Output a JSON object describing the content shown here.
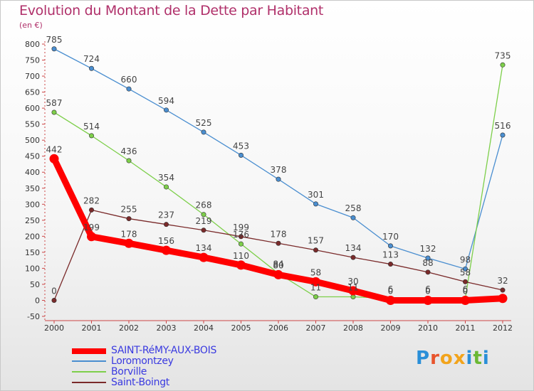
{
  "header": {
    "title": "Evolution du Montant de la Dette par Habitant",
    "unit": "(en €)"
  },
  "logo": {
    "text": "Proxiti",
    "letter_colors": [
      "#2a8fd8",
      "#e8542c",
      "#f2a41c",
      "#f2a41c",
      "#2a8fd8",
      "#6bb834",
      "#2a8fd8"
    ]
  },
  "chart_data": {
    "type": "line",
    "title": "Evolution du Montant de la Dette par Habitant",
    "ylabel": "(en €)",
    "xlabel": "",
    "x": [
      "2000",
      "2001",
      "2002",
      "2003",
      "2004",
      "2005",
      "2006",
      "2007",
      "2008",
      "2009",
      "2010",
      "2011",
      "2012"
    ],
    "ylim": [
      -50,
      800
    ],
    "yticks": [
      -50,
      0,
      50,
      100,
      150,
      200,
      250,
      300,
      350,
      400,
      450,
      500,
      550,
      600,
      650,
      700,
      750,
      800
    ],
    "grid": false,
    "legend_position": "bottom-left",
    "series": [
      {
        "name": "SAINT-RéMY-AUX-BOIS",
        "color": "#ff0000",
        "values": [
          442,
          199,
          178,
          156,
          134,
          110,
          80,
          58,
          30,
          0,
          0,
          0,
          6
        ],
        "labels": [
          "442",
          "199",
          "178",
          "156",
          "134",
          "110",
          "80",
          "58",
          "30",
          "0",
          "0",
          "0",
          ""
        ]
      },
      {
        "name": "Loromontzey",
        "color": "#4a8ed0",
        "values": [
          785,
          724,
          660,
          594,
          525,
          453,
          378,
          301,
          258,
          170,
          132,
          98,
          516
        ],
        "labels": [
          "785",
          "724",
          "660",
          "594",
          "525",
          "453",
          "378",
          "301",
          "258",
          "170",
          "132",
          "98",
          "516"
        ]
      },
      {
        "name": "Borville",
        "color": "#7dcf4a",
        "values": [
          587,
          514,
          436,
          354,
          268,
          176,
          84,
          11,
          11,
          6,
          6,
          6,
          735
        ],
        "labels": [
          "587",
          "514",
          "436",
          "354",
          "268",
          "176",
          "84",
          "11",
          "11",
          "6",
          "6",
          "6",
          "735"
        ]
      },
      {
        "name": "Saint-Boingt",
        "color": "#7a2a2a",
        "values": [
          0,
          282,
          255,
          237,
          219,
          199,
          178,
          157,
          134,
          113,
          88,
          58,
          32
        ],
        "labels": [
          "0",
          "282",
          "255",
          "237",
          "219",
          "199",
          "178",
          "157",
          "134",
          "113",
          "88",
          "58",
          "32"
        ]
      }
    ]
  }
}
